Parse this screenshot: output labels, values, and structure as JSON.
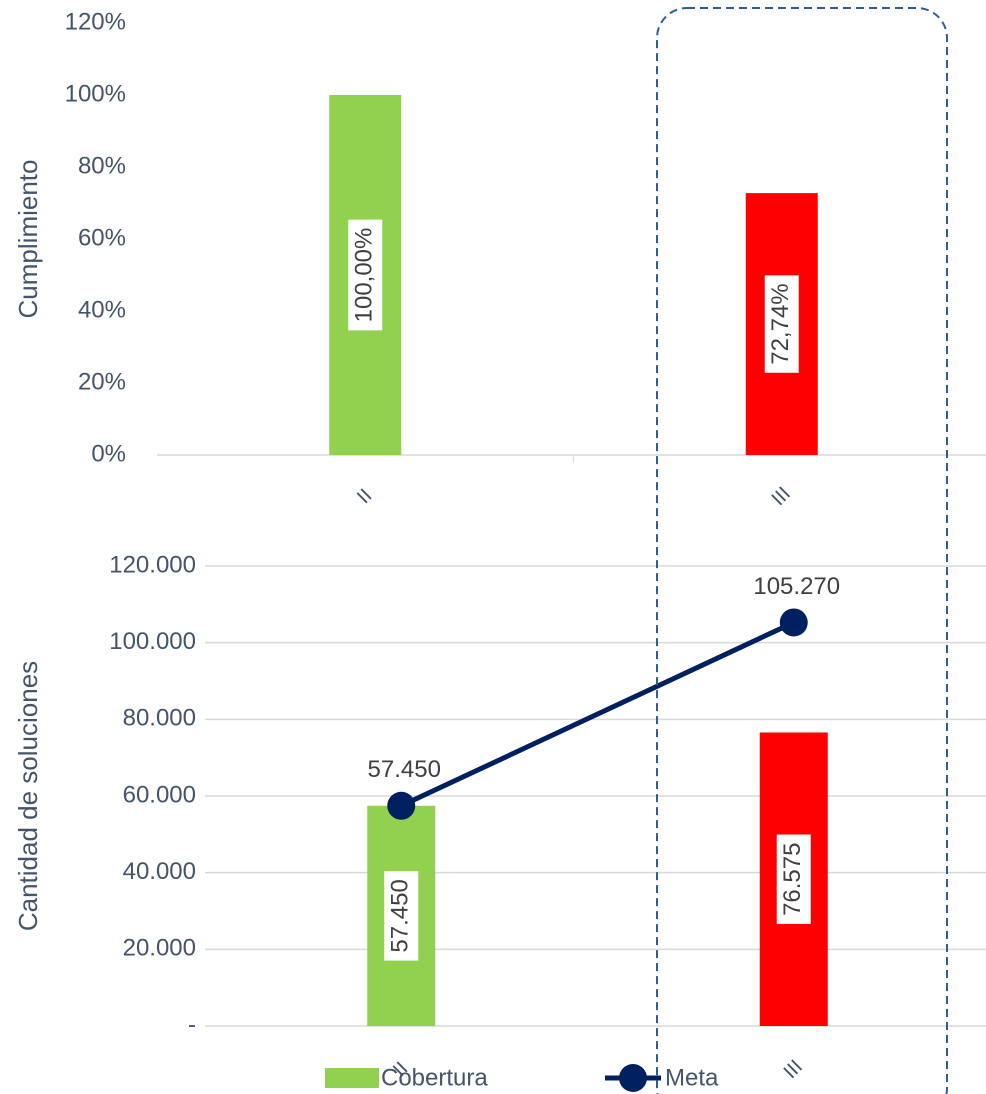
{
  "chart_data": [
    {
      "type": "bar",
      "y_label": "Cumplimiento",
      "categories": [
        "II",
        "III"
      ],
      "values": [
        100,
        72.74
      ],
      "value_labels": [
        "100,00%",
        "72,74%"
      ],
      "colors": [
        "#92d050",
        "#ff0000"
      ],
      "ylim": [
        0,
        120
      ],
      "yticks": [
        {
          "value": 0,
          "label": "0%"
        },
        {
          "value": 20,
          "label": "20%"
        },
        {
          "value": 40,
          "label": "40%"
        },
        {
          "value": 60,
          "label": "60%"
        },
        {
          "value": 80,
          "label": "80%"
        },
        {
          "value": 100,
          "label": "100%"
        },
        {
          "value": 120,
          "label": "120%"
        }
      ],
      "grid": false
    },
    {
      "type": "bar_line",
      "y_label": "Cantidad de soluciones",
      "categories": [
        "II",
        "III"
      ],
      "series": [
        {
          "name": "Cobertura",
          "type": "bar",
          "color": "#92d050",
          "colors": [
            "#92d050",
            "#ff0000"
          ],
          "values": [
            57450,
            76575
          ],
          "value_labels": [
            "57.450",
            "76.575"
          ]
        },
        {
          "name": "Meta",
          "type": "line",
          "color": "#002060",
          "values": [
            57450,
            105270
          ],
          "value_labels": [
            "57.450",
            "105.270"
          ]
        }
      ],
      "ylim": [
        0,
        120000
      ],
      "yticks": [
        {
          "value": 0,
          "label": "-"
        },
        {
          "value": 20000,
          "label": "20.000"
        },
        {
          "value": 40000,
          "label": "40.000"
        },
        {
          "value": 60000,
          "label": "60.000"
        },
        {
          "value": 80000,
          "label": "80.000"
        },
        {
          "value": 100000,
          "label": "100.000"
        },
        {
          "value": 120000,
          "label": "120.000"
        }
      ],
      "grid": true
    }
  ]
}
